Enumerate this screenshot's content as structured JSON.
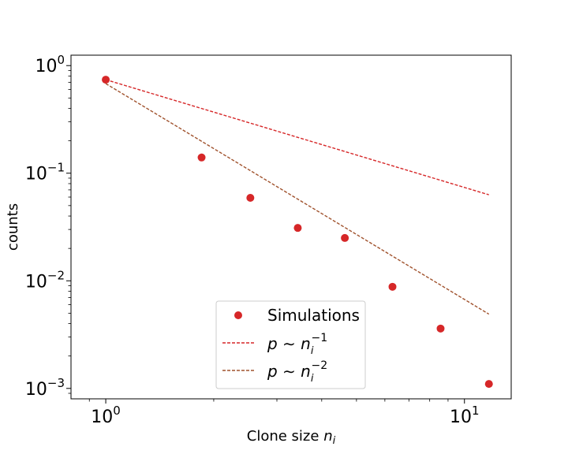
{
  "chart_data": {
    "type": "scatter",
    "xscale": "log",
    "yscale": "log",
    "xlim": [
      0.8,
      13.5
    ],
    "ylim": [
      0.0008,
      1.25
    ],
    "xlabel": "Clone size n_i",
    "ylabel": "counts",
    "grid": false,
    "legend_position": "lower center",
    "x_ticks": [
      {
        "value": 1,
        "base": "10",
        "exp": "0"
      },
      {
        "value": 10,
        "base": "10",
        "exp": "1"
      }
    ],
    "y_ticks": [
      {
        "value": 1,
        "base": "10",
        "exp": "0"
      },
      {
        "value": 0.1,
        "base": "10",
        "exp": "−1"
      },
      {
        "value": 0.01,
        "base": "10",
        "exp": "−2"
      },
      {
        "value": 0.001,
        "base": "10",
        "exp": "−3"
      }
    ],
    "series": [
      {
        "name": "Simulations",
        "kind": "scatter",
        "color": "#d62728",
        "points": [
          {
            "x": 1.0,
            "y": 0.74
          },
          {
            "x": 1.85,
            "y": 0.14
          },
          {
            "x": 2.53,
            "y": 0.059
          },
          {
            "x": 3.43,
            "y": 0.031
          },
          {
            "x": 4.64,
            "y": 0.025
          },
          {
            "x": 6.3,
            "y": 0.0088
          },
          {
            "x": 8.58,
            "y": 0.0036
          },
          {
            "x": 11.7,
            "y": 0.0011
          }
        ]
      },
      {
        "name": "p ~ n_i^-1",
        "kind": "line",
        "color": "#d62728",
        "points": [
          {
            "x": 1.0,
            "y": 0.74
          },
          {
            "x": 11.7,
            "y": 0.063
          }
        ]
      },
      {
        "name": "p ~ n_i^-2",
        "kind": "line",
        "color": "#a0522d",
        "points": [
          {
            "x": 1.0,
            "y": 0.68
          },
          {
            "x": 11.7,
            "y": 0.0049
          }
        ]
      }
    ]
  },
  "legend": {
    "simulations": "Simulations",
    "line1_base": "p ∼ n",
    "line1_sub": "i",
    "line1_sup": "−1",
    "line2_base": "p ∼ n",
    "line2_sub": "i",
    "line2_sup": "−2"
  },
  "xlabel": {
    "text": "Clone size ",
    "var": "n",
    "sub": "i"
  },
  "ylabel": {
    "text": "counts"
  }
}
